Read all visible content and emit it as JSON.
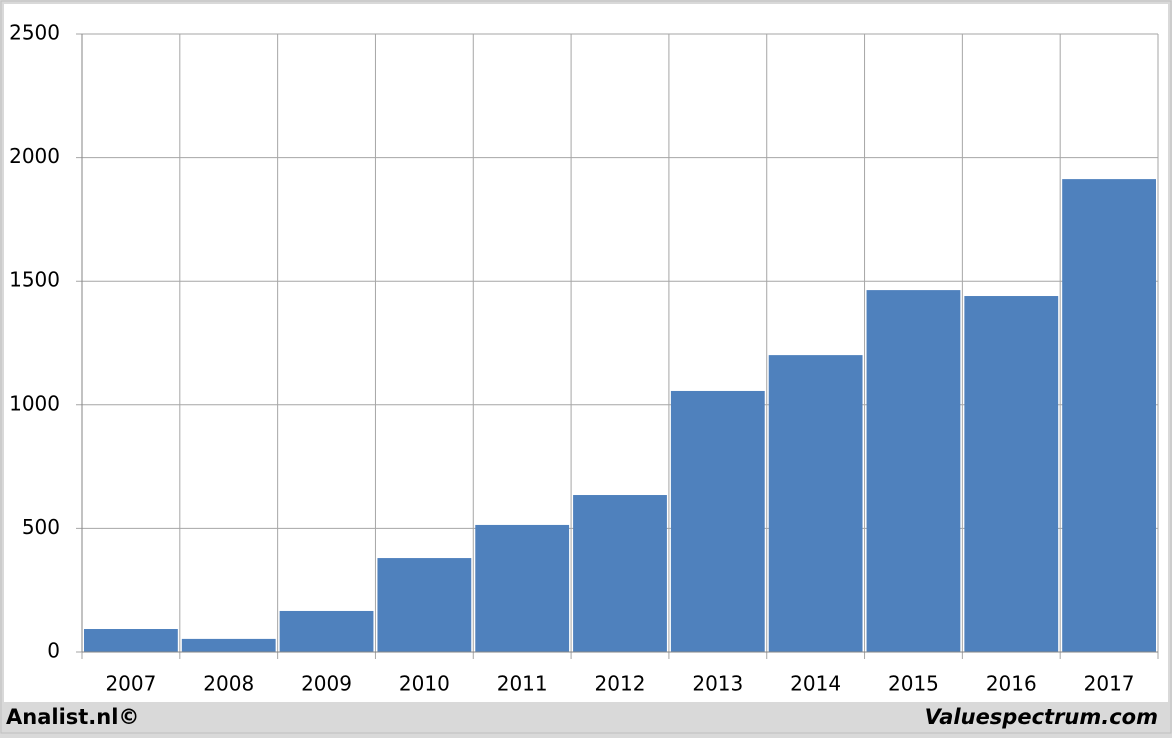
{
  "chart_data": {
    "type": "bar",
    "categories": [
      "2007",
      "2008",
      "2009",
      "2010",
      "2011",
      "2012",
      "2013",
      "2014",
      "2015",
      "2016",
      "2017"
    ],
    "values": [
      93,
      53,
      166,
      380,
      514,
      635,
      1056,
      1201,
      1464,
      1440,
      1913
    ],
    "color": "#4f81bd",
    "ylim": [
      0,
      2500
    ],
    "yticks": [
      0,
      500,
      1000,
      1500,
      2000,
      2500
    ],
    "grid": true
  },
  "footer": {
    "left": "Analist.nl©",
    "right": "Valuespectrum.com"
  }
}
